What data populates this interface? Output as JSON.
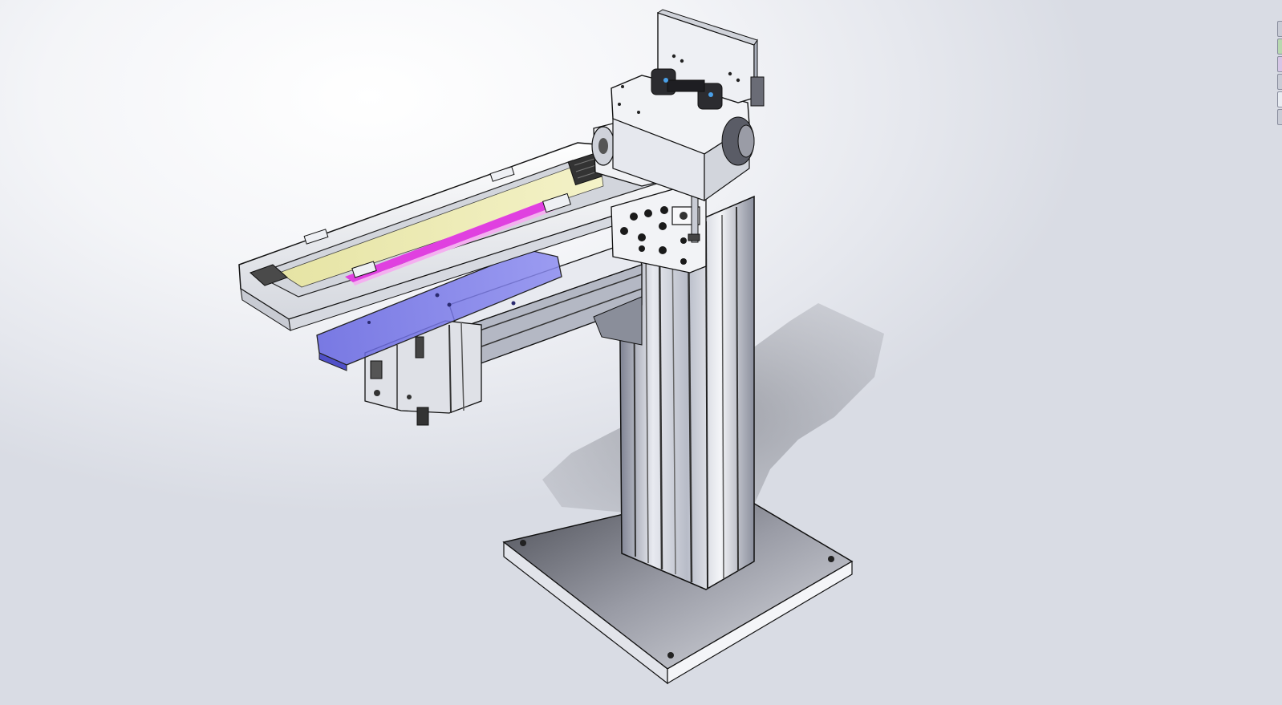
{
  "viewport": {
    "background_top": "#ffffff",
    "background_bottom": "#d9dce4"
  },
  "model": {
    "description_icon": "cad-assembly",
    "colors": {
      "aluminum_light": "#f2f3f6",
      "aluminum_mid": "#c9ccd4",
      "aluminum_dark": "#6c7080",
      "edge": "#1a1a1a",
      "blue_transparent": "#5a5ad8",
      "yellow_strip": "#ecedb0",
      "magenta_strip": "#e040e0",
      "base_plate": "#8c8e96",
      "shadow": "#9a9ca4"
    }
  },
  "right_toolbar": {
    "buttons": [
      "view-orientation-icon",
      "display-style-icon",
      "section-view-icon",
      "hide-show-icon",
      "edit-appearance-icon",
      "apply-scene-icon"
    ]
  }
}
